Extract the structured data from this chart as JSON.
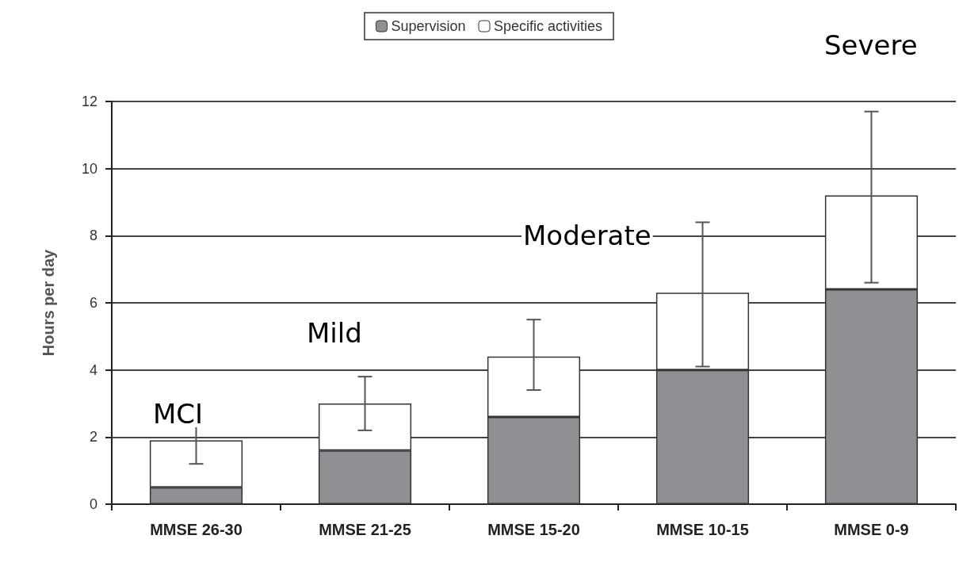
{
  "chart_data": {
    "type": "bar",
    "stacked": true,
    "ylabel": "Hours per day",
    "categories": [
      "MMSE 26-30",
      "MMSE 21-25",
      "MMSE 15-20",
      "MMSE 10-15",
      "MMSE 0-9"
    ],
    "series": [
      {
        "name": "Supervision",
        "color": "#8f9094",
        "values": [
          0.5,
          1.6,
          2.6,
          4.0,
          6.4
        ]
      },
      {
        "name": "Specific activities",
        "color": "#ffffff",
        "values": [
          1.4,
          1.4,
          1.8,
          2.3,
          2.8
        ],
        "errors": [
          [
            1.2,
            2.7
          ],
          [
            2.2,
            3.8
          ],
          [
            3.4,
            5.5
          ],
          [
            4.1,
            8.4
          ],
          [
            6.6,
            11.7
          ]
        ]
      }
    ],
    "ylim": [
      0,
      12
    ],
    "yticks": [
      0,
      2,
      4,
      6,
      8,
      10,
      12
    ],
    "grid": "y",
    "legend": "top",
    "annotations": [
      "MCI",
      "Mild",
      "Moderate",
      "Severe"
    ]
  }
}
